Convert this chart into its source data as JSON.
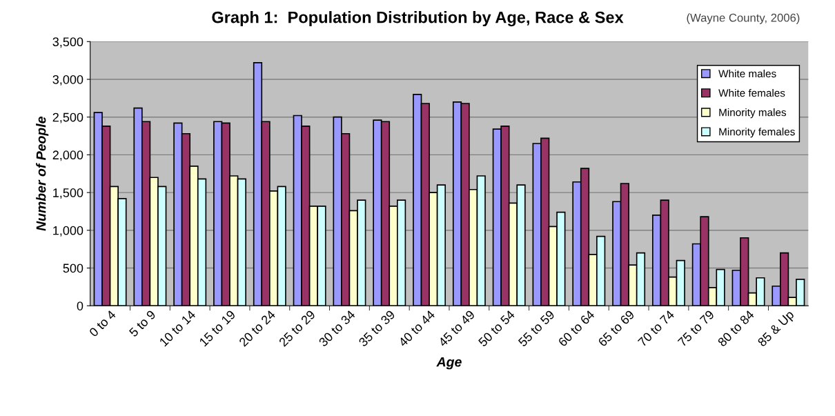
{
  "chart_data": {
    "type": "bar",
    "title": "Graph 1:  Population Distribution by Age, Race & Sex",
    "subtitle": "(Wayne County, 2006)",
    "xlabel": "Age",
    "ylabel": "Number of People",
    "categories": [
      "0 to 4",
      "5 to 9",
      "10 to 14",
      "15 to 19",
      "20 to 24",
      "25 to 29",
      "30 to 34",
      "35 to 39",
      "40 to 44",
      "45 to 49",
      "50 to 54",
      "55 to 59",
      "60 to 64",
      "65 to 69",
      "70 to 74",
      "75 to 79",
      "80 to 84",
      "85 & Up"
    ],
    "series": [
      {
        "name": "White males",
        "color": "#9999ff",
        "values": [
          2560,
          2620,
          2420,
          2440,
          3220,
          2520,
          2500,
          2460,
          2800,
          2700,
          2340,
          2150,
          1640,
          1380,
          1200,
          820,
          470,
          260
        ]
      },
      {
        "name": "White females",
        "color": "#993366",
        "values": [
          2380,
          2440,
          2280,
          2420,
          2440,
          2380,
          2280,
          2440,
          2680,
          2680,
          2380,
          2220,
          1820,
          1620,
          1400,
          1180,
          900,
          700
        ]
      },
      {
        "name": "Minority males",
        "color": "#ffffcc",
        "values": [
          1580,
          1700,
          1850,
          1720,
          1520,
          1320,
          1260,
          1320,
          1500,
          1540,
          1360,
          1050,
          680,
          540,
          380,
          240,
          170,
          110
        ]
      },
      {
        "name": "Minority females",
        "color": "#ccffff",
        "values": [
          1420,
          1580,
          1680,
          1680,
          1580,
          1320,
          1400,
          1400,
          1600,
          1720,
          1600,
          1240,
          920,
          700,
          600,
          480,
          370,
          350
        ]
      }
    ],
    "ylim": [
      0,
      3500
    ],
    "yticks": [
      {
        "value": 0,
        "label": "0"
      },
      {
        "value": 500,
        "label": "500"
      },
      {
        "value": 1000,
        "label": "1,000"
      },
      {
        "value": 1500,
        "label": "1,500"
      },
      {
        "value": 2000,
        "label": "2,000"
      },
      {
        "value": 2500,
        "label": "2,500"
      },
      {
        "value": 3000,
        "label": "3,000"
      },
      {
        "value": 3500,
        "label": "3,500"
      }
    ],
    "grid": "y",
    "legend": "top right"
  }
}
